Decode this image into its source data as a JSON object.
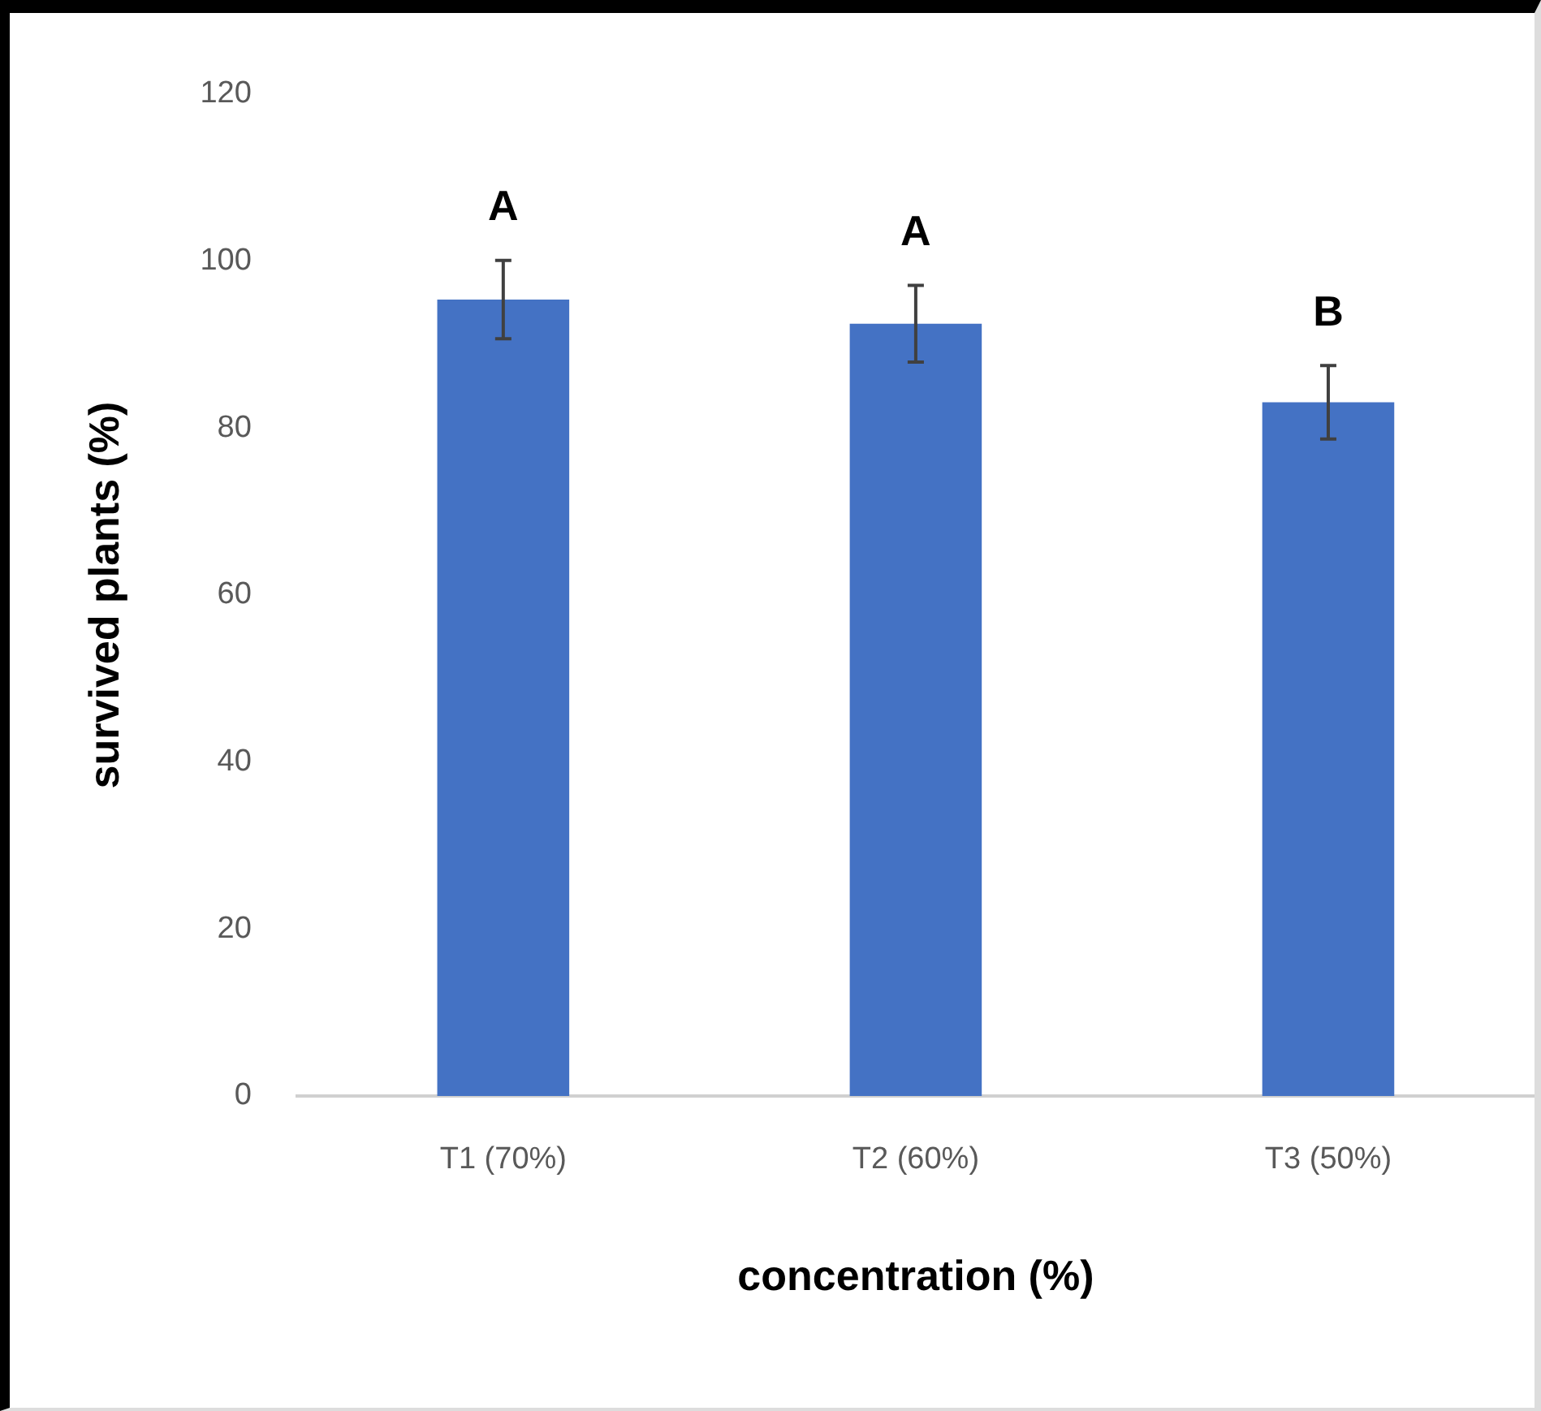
{
  "chart_data": {
    "type": "bar",
    "ylabel": "survived plants (%)",
    "xlabel": "concentration (%)",
    "categories": [
      "T1 (70%)",
      "T2 (60%)",
      "T3 (50%)"
    ],
    "values": [
      95.4,
      92.5,
      83.1
    ],
    "errors": [
      4.7,
      4.6,
      4.4
    ],
    "color": "#4472c4",
    "ylim": [
      0,
      120
    ],
    "yticks": [
      0,
      20,
      40,
      60,
      80,
      100,
      120
    ],
    "grid": false,
    "legend": false,
    "annotations": [
      "A",
      "A",
      "B"
    ]
  }
}
